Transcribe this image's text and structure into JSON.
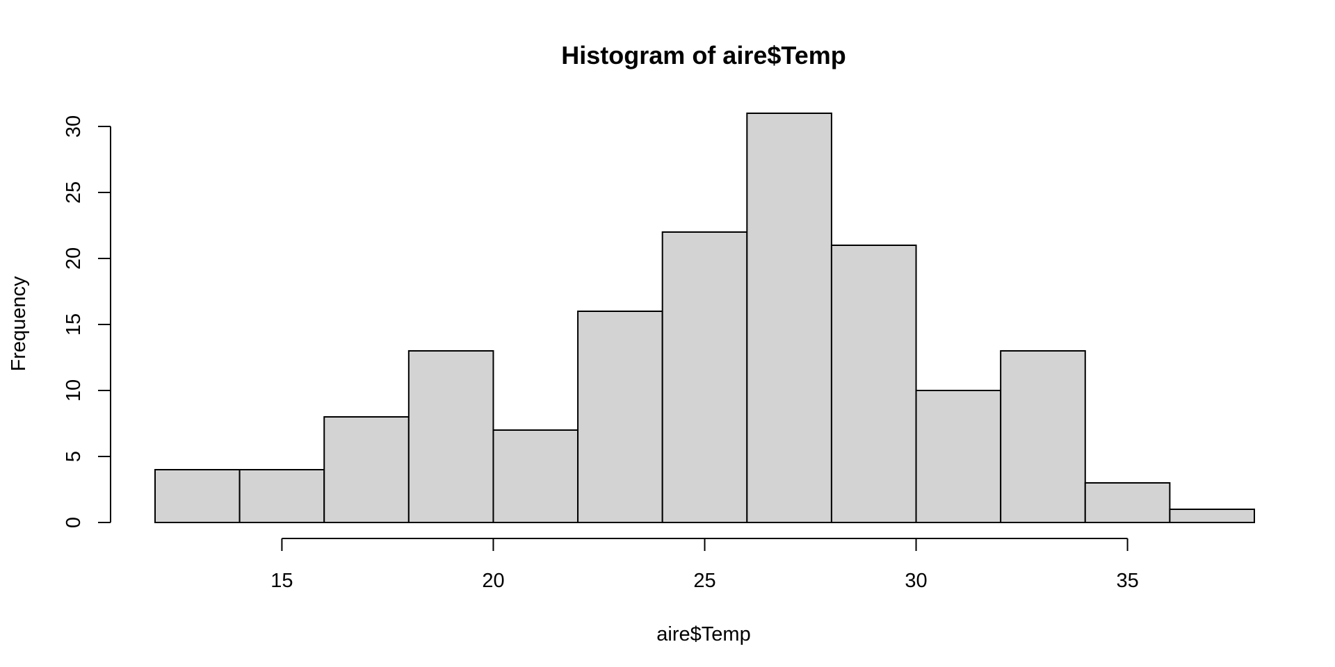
{
  "chart_data": {
    "type": "bar",
    "title": "Histogram of aire$Temp",
    "xlabel": "aire$Temp",
    "ylabel": "Frequency",
    "bins": [
      {
        "start": 12,
        "end": 14,
        "count": 4
      },
      {
        "start": 14,
        "end": 16,
        "count": 4
      },
      {
        "start": 16,
        "end": 18,
        "count": 8
      },
      {
        "start": 18,
        "end": 20,
        "count": 13
      },
      {
        "start": 20,
        "end": 22,
        "count": 7
      },
      {
        "start": 22,
        "end": 24,
        "count": 16
      },
      {
        "start": 24,
        "end": 26,
        "count": 22
      },
      {
        "start": 26,
        "end": 28,
        "count": 31
      },
      {
        "start": 28,
        "end": 30,
        "count": 21
      },
      {
        "start": 30,
        "end": 32,
        "count": 10
      },
      {
        "start": 32,
        "end": 34,
        "count": 13
      },
      {
        "start": 34,
        "end": 36,
        "count": 3
      },
      {
        "start": 36,
        "end": 38,
        "count": 1
      }
    ],
    "x_ticks": [
      "15",
      "20",
      "25",
      "30",
      "35"
    ],
    "y_ticks": [
      "0",
      "5",
      "10",
      "15",
      "20",
      "25",
      "30"
    ],
    "xlim": [
      12,
      38
    ],
    "ylim": [
      0,
      31
    ],
    "grid": false,
    "bar_fill": "#d3d3d3",
    "bar_stroke": "#000000"
  }
}
